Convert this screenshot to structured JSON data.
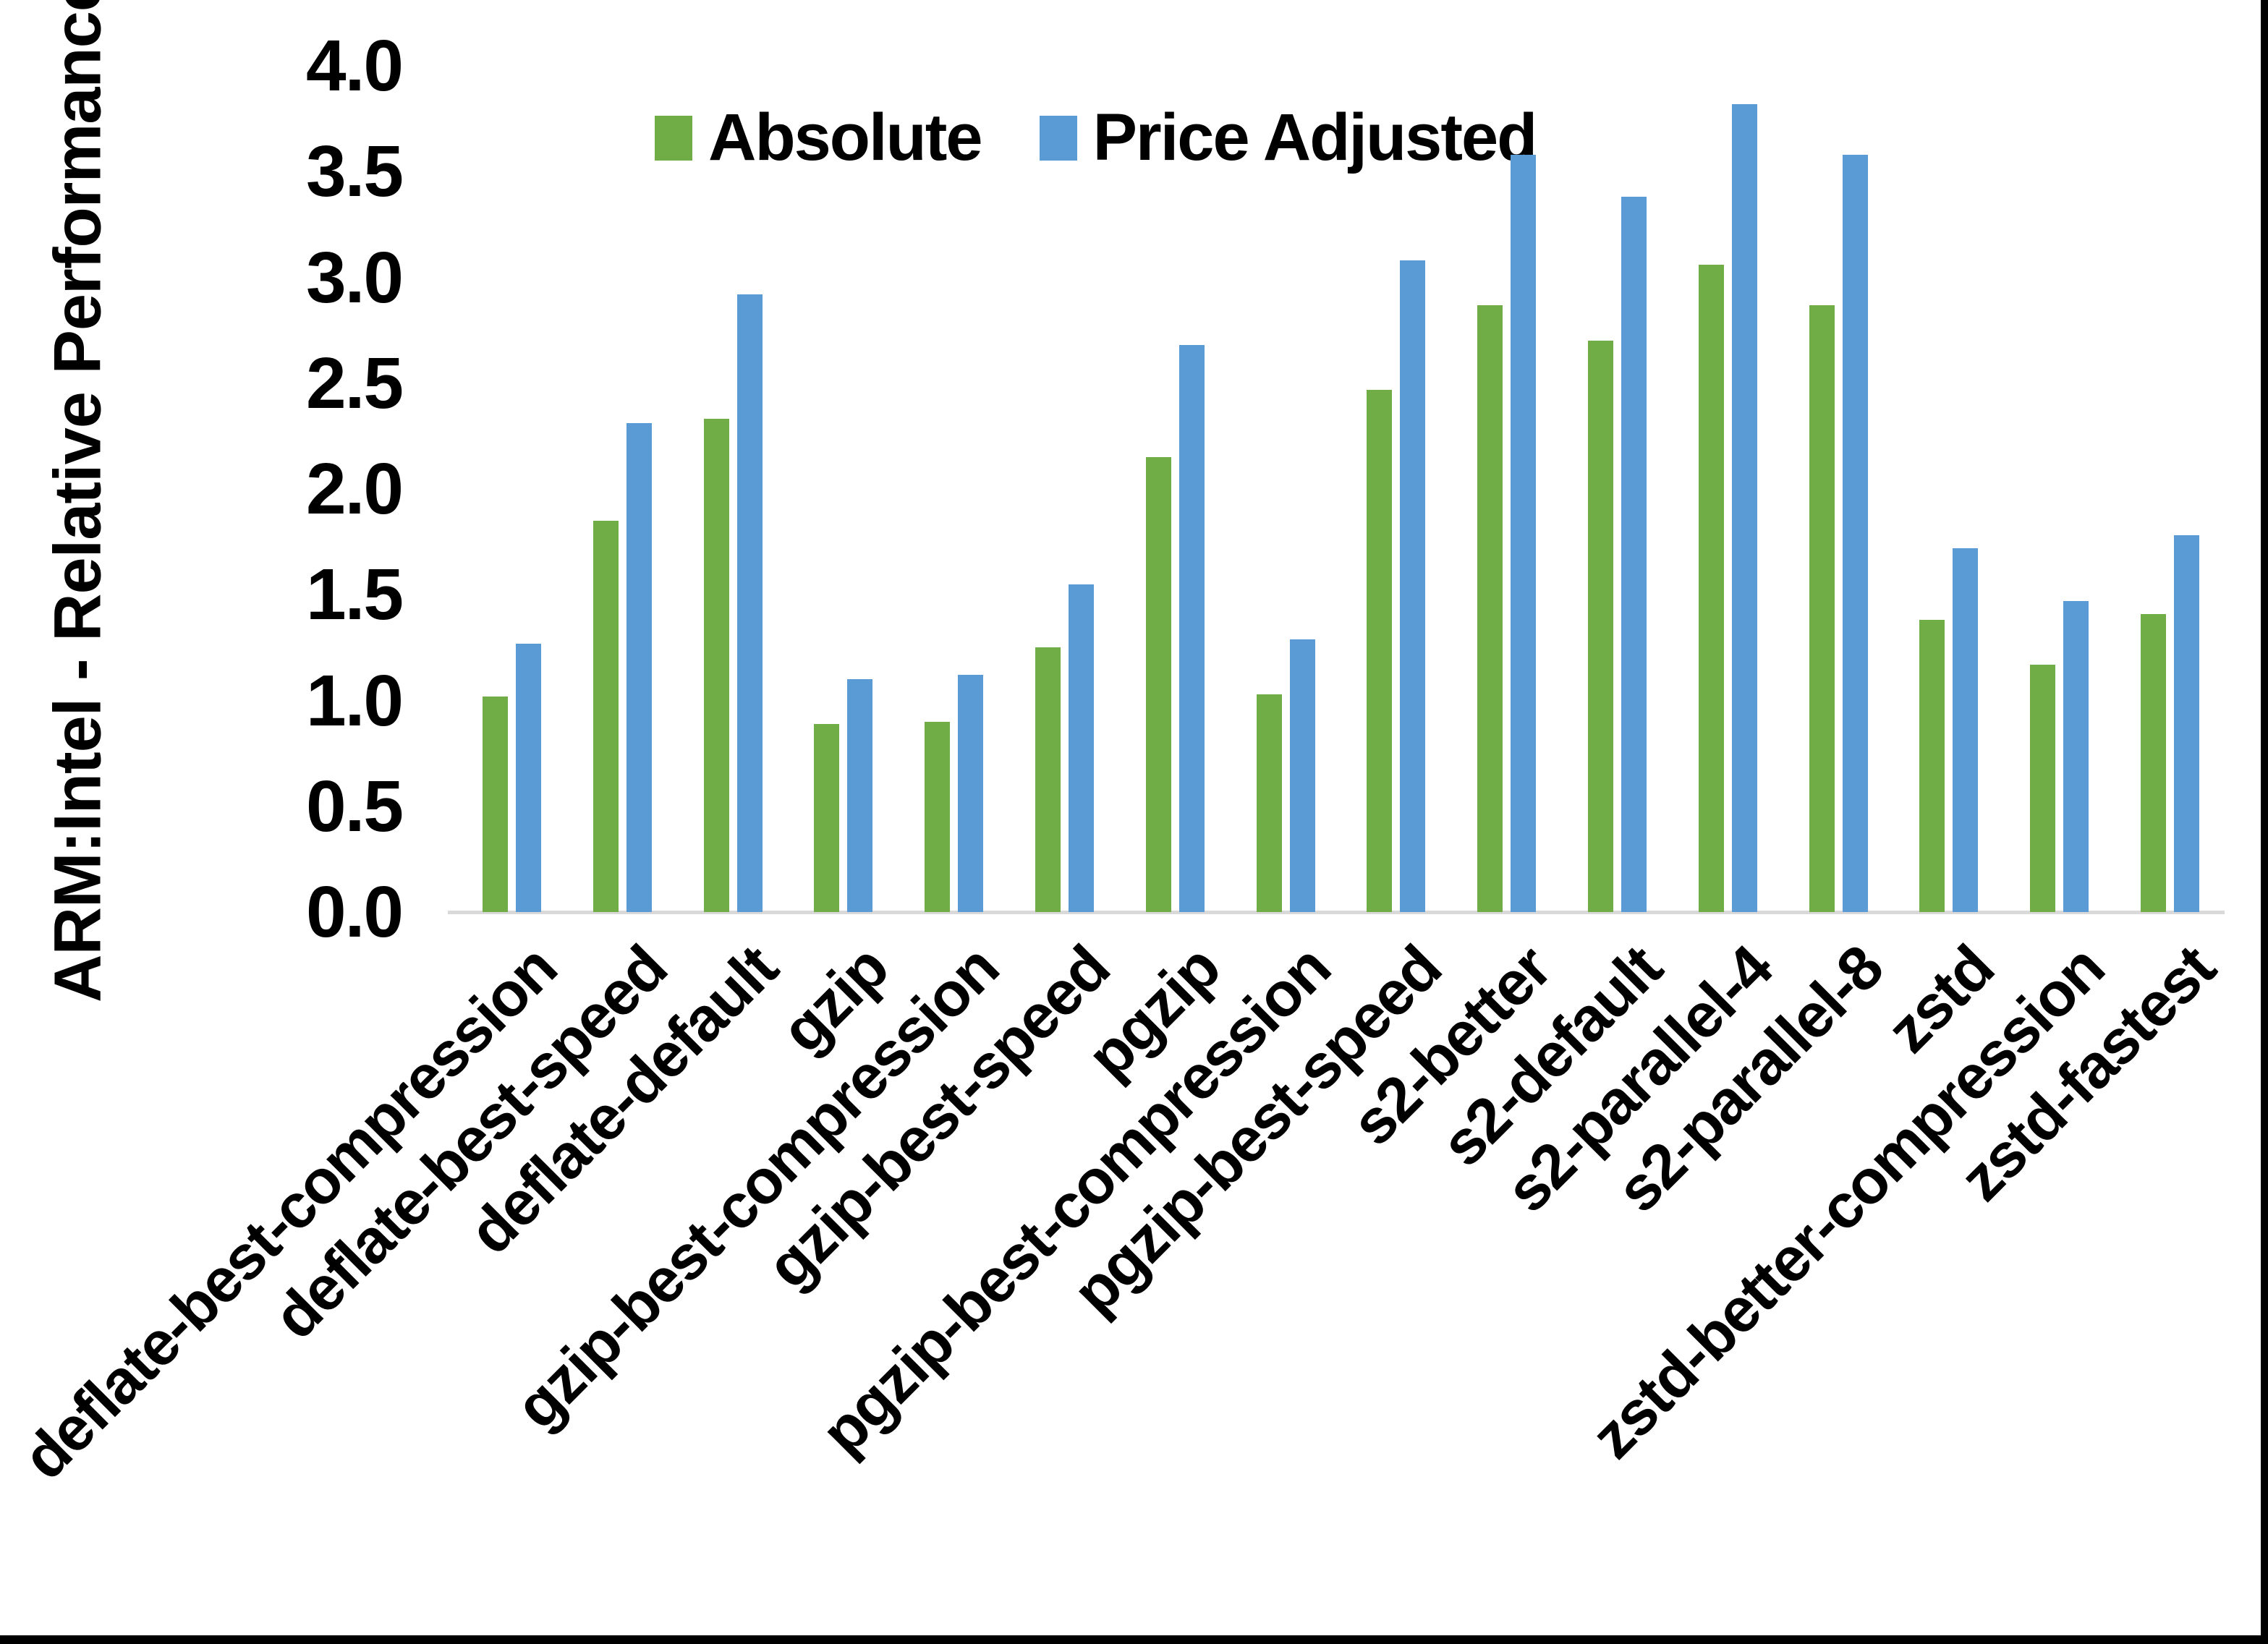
{
  "chart_data": {
    "type": "bar",
    "title": "",
    "xlabel": "",
    "ylabel": "ARM:Intel - Relative Performance",
    "ylim": [
      0.0,
      4.0
    ],
    "ytick_step": 0.5,
    "ytick_labels": [
      "0.0",
      "0.5",
      "1.0",
      "1.5",
      "2.0",
      "2.5",
      "3.0",
      "3.5",
      "4.0"
    ],
    "grid": false,
    "legend_position": "top-center",
    "axis_line_color": "#D9D9D9",
    "categories": [
      "deflate-best-compression",
      "deflate-best-speed",
      "deflate-default",
      "gzip",
      "gzip-best-compression",
      "gzip-best-speed",
      "pgzip",
      "pgzip-best-compression",
      "pgzip-best-speed",
      "s2-better",
      "s2-default",
      "s2-parallel-4",
      "s2-parallel-8",
      "zstd",
      "zstd-better-compression",
      "zstd-fastest"
    ],
    "series": [
      {
        "name": "Absolute",
        "color": "#70AD47",
        "values": [
          1.02,
          1.85,
          2.33,
          0.89,
          0.9,
          1.25,
          2.15,
          1.03,
          2.47,
          2.87,
          2.7,
          3.06,
          2.87,
          1.38,
          1.17,
          1.41
        ]
      },
      {
        "name": "Price Adjusted",
        "color": "#5B9BD5",
        "values": [
          1.27,
          2.31,
          2.92,
          1.1,
          1.12,
          1.55,
          2.68,
          1.29,
          3.08,
          3.58,
          3.38,
          3.82,
          3.58,
          1.72,
          1.47,
          1.78
        ]
      }
    ]
  }
}
